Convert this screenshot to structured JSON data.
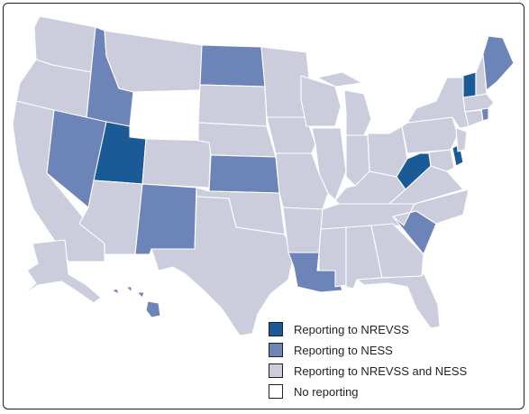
{
  "colors": {
    "nrevss": "#1a5a96",
    "ness": "#6d84b8",
    "both": "#cbcddd",
    "none": "#ffffff",
    "border": "#ffffff",
    "frame": "#231f20"
  },
  "legend": [
    {
      "label": "Reporting to NREVSS",
      "category": "nrevss"
    },
    {
      "label": "Reporting to NESS",
      "category": "ness"
    },
    {
      "label": "Reporting to NREVSS and NESS",
      "category": "both"
    },
    {
      "label": "No reporting",
      "category": "none"
    }
  ],
  "states": {
    "UT": "nrevss",
    "WV": "nrevss",
    "VT": "nrevss",
    "DE": "nrevss",
    "ID": "ness",
    "NV": "ness",
    "ND": "ness",
    "KS": "ness",
    "NM": "ness",
    "LA": "ness",
    "SC": "ness",
    "ME": "ness",
    "HI": "ness",
    "RI": "ness",
    "WY": "none"
  },
  "default_category": "both"
}
